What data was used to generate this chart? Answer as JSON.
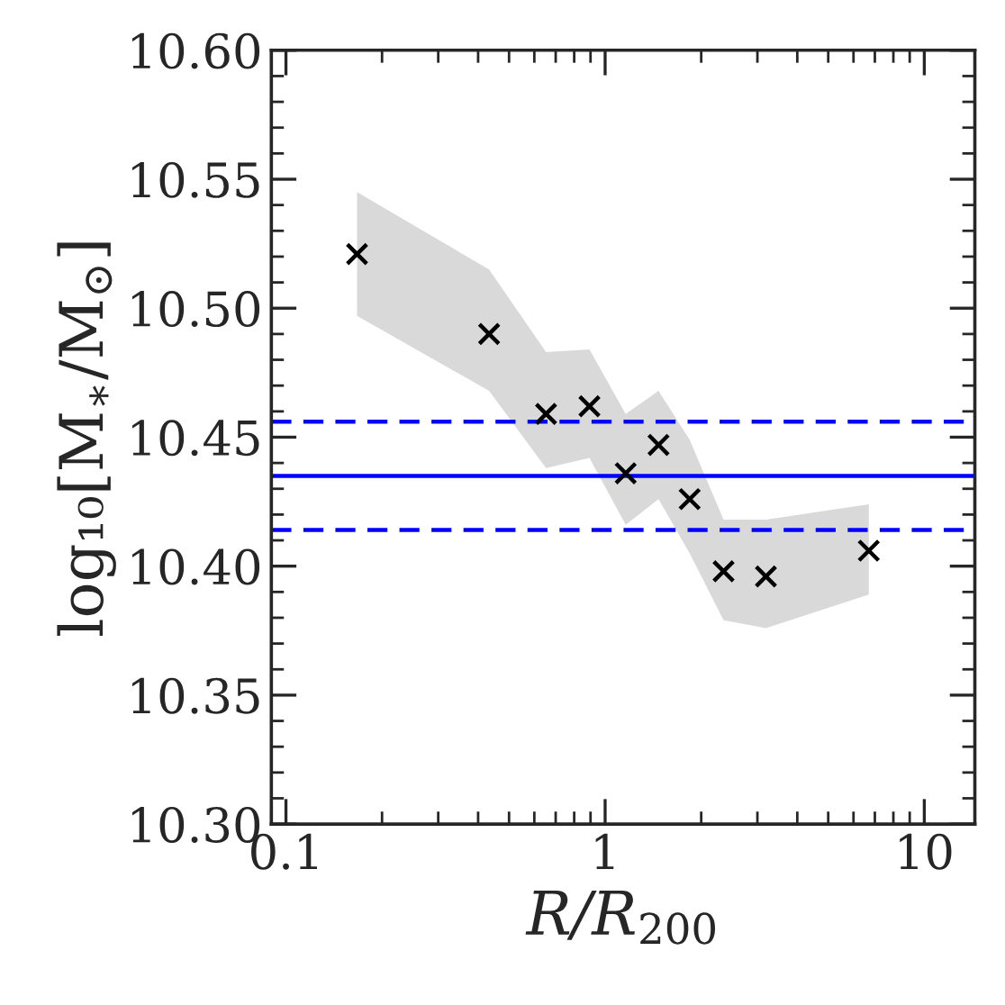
{
  "chart_data": {
    "type": "scatter",
    "xlabel": "R/R$_{200}$",
    "ylabel": "log₁₀[M$_{∗}$/M$_{⊙}$]",
    "log": "x",
    "xlim": [
      0.09,
      14.4
    ],
    "xticks": [
      0.1,
      1,
      10
    ],
    "ylim": [
      10.3,
      10.6
    ],
    "yticks": [
      {
        "value": 10.3,
        "label": "10.30"
      },
      {
        "value": 10.35,
        "label": "10.35"
      },
      {
        "value": 10.4,
        "label": "10.40"
      },
      {
        "value": 10.45,
        "label": "10.45"
      },
      {
        "value": 10.5,
        "label": "10.50"
      },
      {
        "value": 10.55,
        "label": "10.55"
      },
      {
        "value": 10.6,
        "label": "10.60"
      }
    ],
    "grid": false,
    "marker": "cross",
    "series": [
      {
        "color": "#000000",
        "x": [
          0.167,
          0.433,
          0.653,
          0.893,
          1.16,
          1.47,
          1.84,
          2.35,
          3.19,
          6.7
        ],
        "values": [
          10.521,
          10.49,
          10.459,
          10.462,
          10.436,
          10.447,
          10.426,
          10.398,
          10.396,
          10.406
        ],
        "lower": [
          10.497,
          10.468,
          10.438,
          10.442,
          10.416,
          10.426,
          10.405,
          10.379,
          10.376,
          10.389
        ],
        "upper": [
          10.545,
          10.515,
          10.483,
          10.484,
          10.459,
          10.468,
          10.449,
          10.418,
          10.418,
          10.424
        ]
      }
    ],
    "ref_lines": [
      {
        "axis": "y",
        "value": 10.435,
        "color": "#0000ff",
        "line_style": "solid"
      },
      {
        "axis": "y",
        "value": 10.456,
        "color": "#0000ff",
        "line_style": "dashed"
      },
      {
        "axis": "y",
        "value": 10.414,
        "color": "#0000ff",
        "line_style": "dashed"
      }
    ]
  }
}
